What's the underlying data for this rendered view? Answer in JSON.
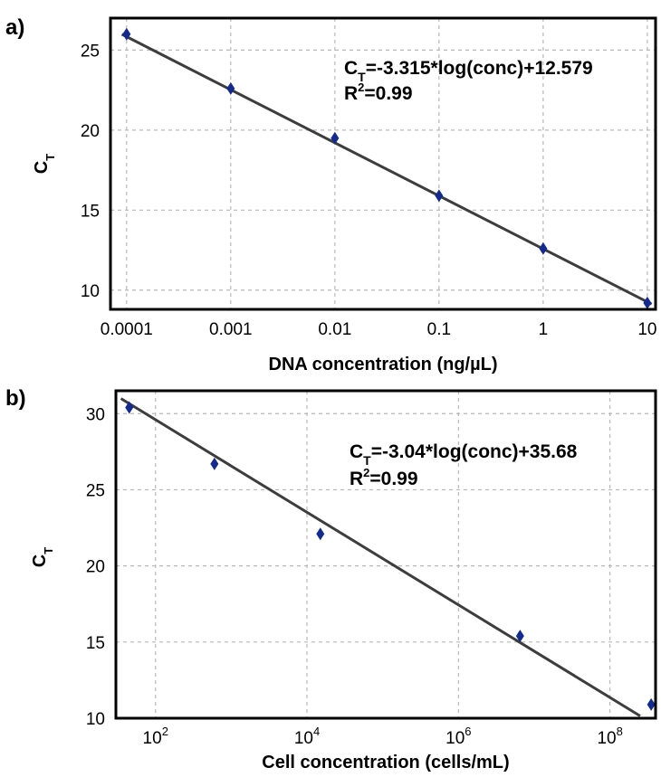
{
  "chart_data": [
    {
      "type": "scatter",
      "panel_label": "a)",
      "xlabel": "DNA concentration (ng/µL)",
      "ylabel": {
        "base": "C",
        "sub": "T"
      },
      "x_scale": "log",
      "xlim": [
        7e-05,
        12
      ],
      "ylim": [
        8.8,
        27
      ],
      "x_ticks": [
        0.0001,
        0.001,
        0.01,
        0.1,
        1,
        10
      ],
      "x_tick_labels": [
        "0.0001",
        "0.001",
        "0.01",
        "0.1",
        "1",
        "10"
      ],
      "y_ticks": [
        10,
        15,
        20,
        25
      ],
      "y_tick_labels": [
        "10",
        "15",
        "20",
        "25"
      ],
      "grid": true,
      "points": [
        {
          "x": 0.0001,
          "y": 26.0
        },
        {
          "x": 0.001,
          "y": 22.6
        },
        {
          "x": 0.01,
          "y": 19.5
        },
        {
          "x": 0.1,
          "y": 15.9
        },
        {
          "x": 1,
          "y": 12.6
        },
        {
          "x": 10,
          "y": 9.2
        }
      ],
      "fit": {
        "slope": -3.315,
        "intercept": 12.579,
        "x_range": [
          9e-05,
          11
        ]
      },
      "equation": {
        "lhs": "C",
        "lhs_sub": "T",
        "rhs": "=-3.315*log(conc)+12.579"
      },
      "r2": {
        "base": "R",
        "sup": "2",
        "rest": "=0.99"
      }
    },
    {
      "type": "scatter",
      "panel_label": "b)",
      "xlabel": "Cell concentration (cells/mL)",
      "ylabel": {
        "base": "C",
        "sub": "T"
      },
      "x_scale": "log",
      "xlim": [
        30,
        400000000
      ],
      "ylim": [
        10,
        31.5
      ],
      "x_ticks": [
        100,
        10000,
        1000000,
        100000000
      ],
      "x_tick_labels": [
        {
          "base": "10",
          "exp": "2"
        },
        {
          "base": "10",
          "exp": "4"
        },
        {
          "base": "10",
          "exp": "6"
        },
        {
          "base": "10",
          "exp": "8"
        }
      ],
      "y_ticks": [
        10,
        15,
        20,
        25,
        30
      ],
      "y_tick_labels": [
        "10",
        "15",
        "20",
        "25",
        "30"
      ],
      "grid": true,
      "points": [
        {
          "x": 45,
          "y": 30.4
        },
        {
          "x": 600,
          "y": 26.7
        },
        {
          "x": 15000,
          "y": 22.1
        },
        {
          "x": 6500000,
          "y": 15.4
        },
        {
          "x": 350000000,
          "y": 10.9
        }
      ],
      "fit": {
        "slope": -3.04,
        "intercept": 35.68,
        "x_range": [
          35,
          250000000
        ]
      },
      "equation": {
        "lhs": "C",
        "lhs_sub": "T",
        "rhs": "=-3.04*log(conc)+35.68"
      },
      "r2": {
        "base": "R",
        "sup": "2",
        "rest": "=0.99"
      }
    }
  ]
}
